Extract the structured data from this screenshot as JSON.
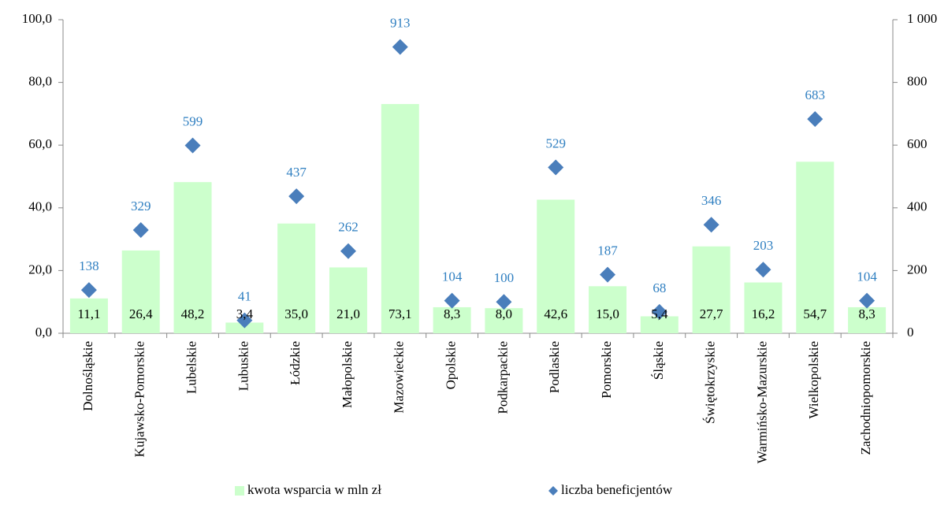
{
  "chart_data": {
    "type": "bar",
    "categories": [
      "Dolnośląskie",
      "Kujawsko-Pomorskie",
      "Lubelskie",
      "Lubuskie",
      "Łódzkie",
      "Małopolskie",
      "Mazowieckie",
      "Opolskie",
      "Podkarpackie",
      "Podlaskie",
      "Pomorskie",
      "Śląskie",
      "Świętokrzyskie",
      "Warmińsko-Mazurskie",
      "Wielkopolskie",
      "Zachodniopomorskie"
    ],
    "series": [
      {
        "name": "kwota wsparcia w mln zł",
        "type": "bar",
        "color": "#ccffcc",
        "values": [
          11.1,
          26.4,
          48.2,
          3.4,
          35.0,
          21.0,
          73.1,
          8.3,
          8.0,
          42.6,
          15.0,
          5.4,
          27.7,
          16.2,
          54.7,
          8.3
        ],
        "value_labels": [
          "11,1",
          "26,4",
          "48,2",
          "3,4",
          "35,0",
          "21,0",
          "73,1",
          "8,3",
          "8,0",
          "42,6",
          "15,0",
          "5,4",
          "27,7",
          "16,2",
          "54,7",
          "8,3"
        ]
      },
      {
        "name": "liczba beneficjentów",
        "type": "scatter",
        "axis": "y2",
        "color": "#4a7ebb",
        "values": [
          138,
          329,
          599,
          41,
          437,
          262,
          913,
          104,
          100,
          529,
          187,
          68,
          346,
          203,
          683,
          104
        ]
      }
    ],
    "ylim": [
      0,
      100
    ],
    "yticks": [
      {
        "value": 0,
        "label": "0,0"
      },
      {
        "value": 20,
        "label": "20,0"
      },
      {
        "value": 40,
        "label": "40,0"
      },
      {
        "value": 60,
        "label": "60,0"
      },
      {
        "value": 80,
        "label": "80,0"
      },
      {
        "value": 100,
        "label": "100,0"
      }
    ],
    "y2lim": [
      0,
      1000
    ],
    "y2ticks": [
      0,
      200,
      400,
      600,
      800,
      {
        "value": 1000,
        "label": "1 000"
      }
    ],
    "grid": false,
    "legend": "bottom"
  }
}
